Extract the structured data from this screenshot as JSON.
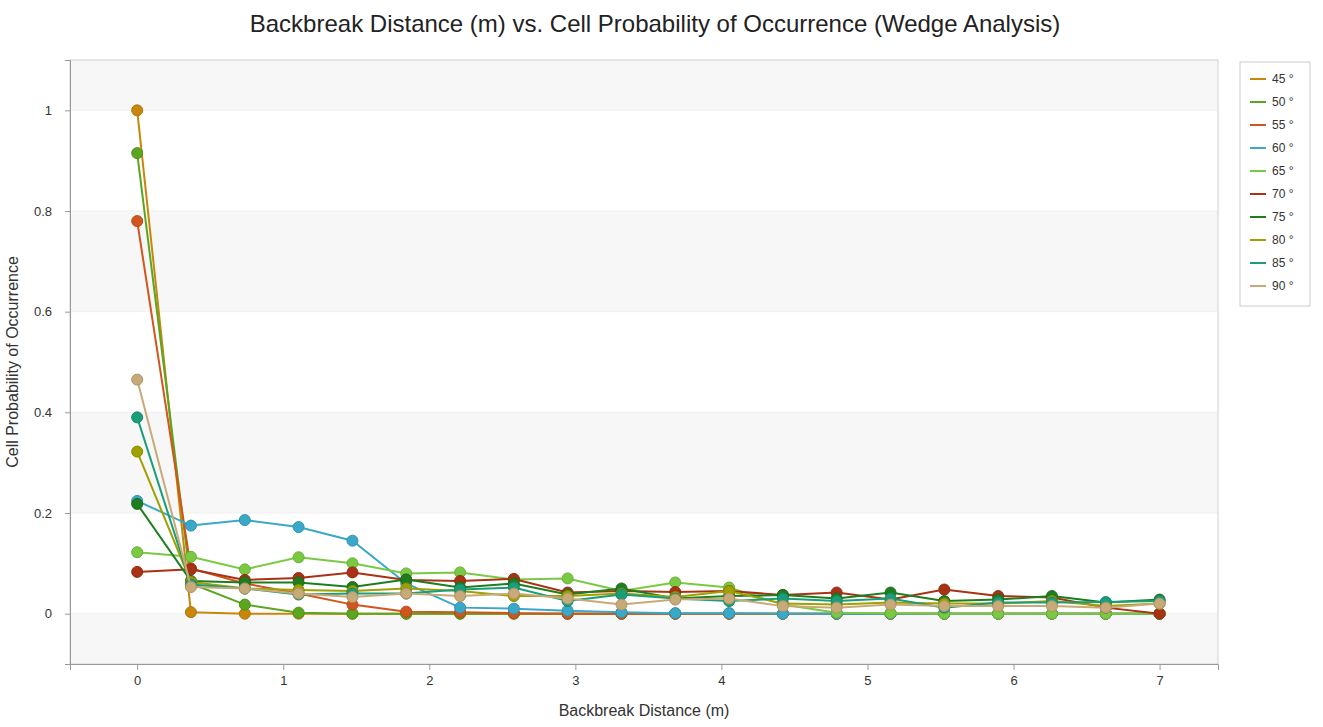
{
  "chart_data": {
    "type": "line",
    "title": "Backbreak Distance (m) vs. Cell Probability of Occurrence (Wedge Analysis)",
    "x_label": "Backbreak Distance (m)",
    "y_label": "Cell Probability of Occurrence",
    "x": [
      0,
      0.368,
      0.737,
      1.105,
      1.474,
      1.842,
      2.211,
      2.579,
      2.947,
      3.316,
      3.684,
      4.053,
      4.421,
      4.789,
      5.158,
      5.526,
      5.895,
      6.263,
      6.632,
      7
    ],
    "xlim": [
      -0.46,
      7.4
    ],
    "xticks": [
      0,
      1,
      2,
      3,
      4,
      5,
      6,
      7
    ],
    "ylim": [
      -0.1,
      1.1
    ],
    "yticks": [
      0,
      0.2,
      0.4,
      0.6,
      0.8,
      1
    ],
    "grid": true,
    "legend": "right",
    "marker": "circle",
    "series": [
      {
        "name": "45 °",
        "color": "#c8860a",
        "values": [
          1.0,
          0.003,
          0,
          0,
          0,
          0,
          0,
          0,
          0,
          0,
          0,
          0,
          0,
          0,
          0,
          0,
          0,
          0,
          0,
          0
        ]
      },
      {
        "name": "50 °",
        "color": "#5aa61e",
        "values": [
          0.915,
          0.06,
          0.018,
          0.002,
          0,
          0,
          0,
          0,
          0,
          0,
          0,
          0,
          0,
          0,
          0,
          0,
          0,
          0,
          0,
          0
        ]
      },
      {
        "name": "55 °",
        "color": "#d2541e",
        "values": [
          0.78,
          0.09,
          0.06,
          0.04,
          0.018,
          0.004,
          0.003,
          0.001,
          0,
          0,
          0,
          0,
          0,
          0,
          0,
          0,
          0,
          0,
          0,
          0
        ]
      },
      {
        "name": "60 °",
        "color": "#3aa8c8",
        "values": [
          0.224,
          0.175,
          0.186,
          0.172,
          0.145,
          0.06,
          0.012,
          0.01,
          0.006,
          0.003,
          0.001,
          0.001,
          0,
          0,
          0,
          0,
          0,
          0,
          0,
          0
        ]
      },
      {
        "name": "65 °",
        "color": "#7ac943",
        "values": [
          0.122,
          0.113,
          0.088,
          0.112,
          0.1,
          0.08,
          0.082,
          0.068,
          0.07,
          0.045,
          0.062,
          0.052,
          0.018,
          0.002,
          0.001,
          0,
          0,
          0,
          0,
          0
        ]
      },
      {
        "name": "70 °",
        "color": "#a83214",
        "values": [
          0.083,
          0.088,
          0.067,
          0.071,
          0.082,
          0.067,
          0.065,
          0.069,
          0.042,
          0.045,
          0.043,
          0.045,
          0.037,
          0.042,
          0.028,
          0.048,
          0.035,
          0.032,
          0.012,
          0
        ]
      },
      {
        "name": "75 °",
        "color": "#1e7d1e",
        "values": [
          0.218,
          0.065,
          0.062,
          0.062,
          0.053,
          0.068,
          0.052,
          0.06,
          0.038,
          0.05,
          0.03,
          0.035,
          0.037,
          0.03,
          0.042,
          0.025,
          0.028,
          0.035,
          0.022,
          0.028
        ]
      },
      {
        "name": "80 °",
        "color": "#a0a000",
        "values": [
          0.322,
          0.063,
          0.05,
          0.047,
          0.045,
          0.05,
          0.045,
          0.035,
          0.035,
          0.04,
          0.033,
          0.045,
          0.02,
          0.018,
          0.022,
          0.02,
          0.02,
          0.025,
          0.015,
          0.02
        ]
      },
      {
        "name": "85 °",
        "color": "#1a9e7a",
        "values": [
          0.39,
          0.058,
          0.05,
          0.038,
          0.04,
          0.04,
          0.048,
          0.052,
          0.025,
          0.038,
          0.03,
          0.025,
          0.03,
          0.025,
          0.03,
          0.012,
          0.022,
          0.022,
          0.023,
          0.025
        ]
      },
      {
        "name": "90 °",
        "color": "#c8aa78",
        "values": [
          0.465,
          0.053,
          0.05,
          0.04,
          0.033,
          0.04,
          0.035,
          0.04,
          0.03,
          0.018,
          0.028,
          0.03,
          0.015,
          0.012,
          0.018,
          0.015,
          0.015,
          0.015,
          0.012,
          0.02
        ]
      }
    ]
  }
}
